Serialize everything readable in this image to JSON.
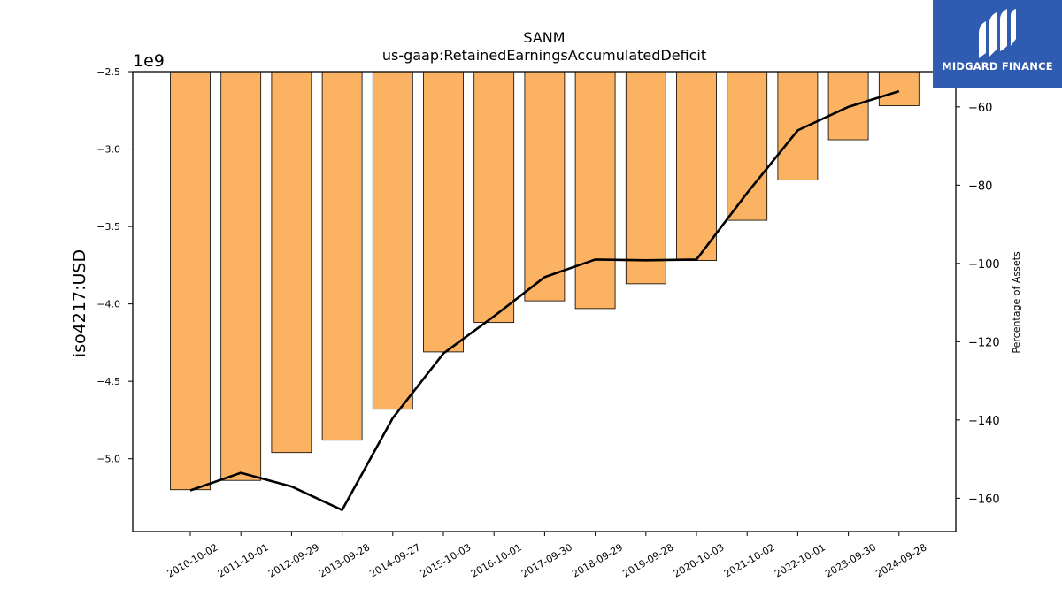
{
  "logo": {
    "text": "MIDGARD FINANCE",
    "background": "#2f5bb0"
  },
  "chart_data": {
    "type": "bar",
    "title": "SANM",
    "subtitle": "us-gaap:RetainedEarningsAccumulatedDeficit",
    "ylabel": "iso4217:USD",
    "y_offset_label": "1e9",
    "y2label": "Percentage of Assets",
    "categories": [
      "2010-10-02",
      "2011-10-01",
      "2012-09-29",
      "2013-09-28",
      "2014-09-27",
      "2015-10-03",
      "2016-10-01",
      "2017-09-30",
      "2018-09-29",
      "2019-09-28",
      "2020-10-03",
      "2021-10-02",
      "2022-10-01",
      "2023-09-30",
      "2024-09-28"
    ],
    "series": [
      {
        "type": "bar",
        "axis": "left",
        "color": "#fbb262",
        "values": [
          -5.2,
          -5.14,
          -4.96,
          -4.88,
          -4.68,
          -4.31,
          -4.12,
          -3.98,
          -4.03,
          -3.87,
          -3.72,
          -3.46,
          -3.2,
          -2.94,
          -2.72
        ]
      },
      {
        "type": "line",
        "axis": "right",
        "color": "#000000",
        "values": [
          -158.0,
          -153.5,
          -157.0,
          -163.0,
          -139.5,
          -123.0,
          -113.5,
          -103.5,
          -99.0,
          -99.2,
          -99.0,
          -82.0,
          -66.0,
          -60.0,
          -56.0
        ]
      }
    ],
    "ylim": [
      -5.47,
      -2.5
    ],
    "y2lim": [
      -168.5,
      -51.0
    ],
    "yticks": [
      -5.0,
      -4.5,
      -4.0,
      -3.5,
      -3.0,
      -2.5
    ],
    "ytick_labels": [
      "−5.0",
      "−4.5",
      "−4.0",
      "−3.5",
      "−3.0",
      "−2.5"
    ],
    "y2ticks": [
      -160,
      -140,
      -120,
      -100,
      -80,
      -60
    ],
    "y2tick_labels": [
      "−160",
      "−140",
      "−120",
      "−100",
      "−80",
      "−60"
    ],
    "grid": false
  }
}
